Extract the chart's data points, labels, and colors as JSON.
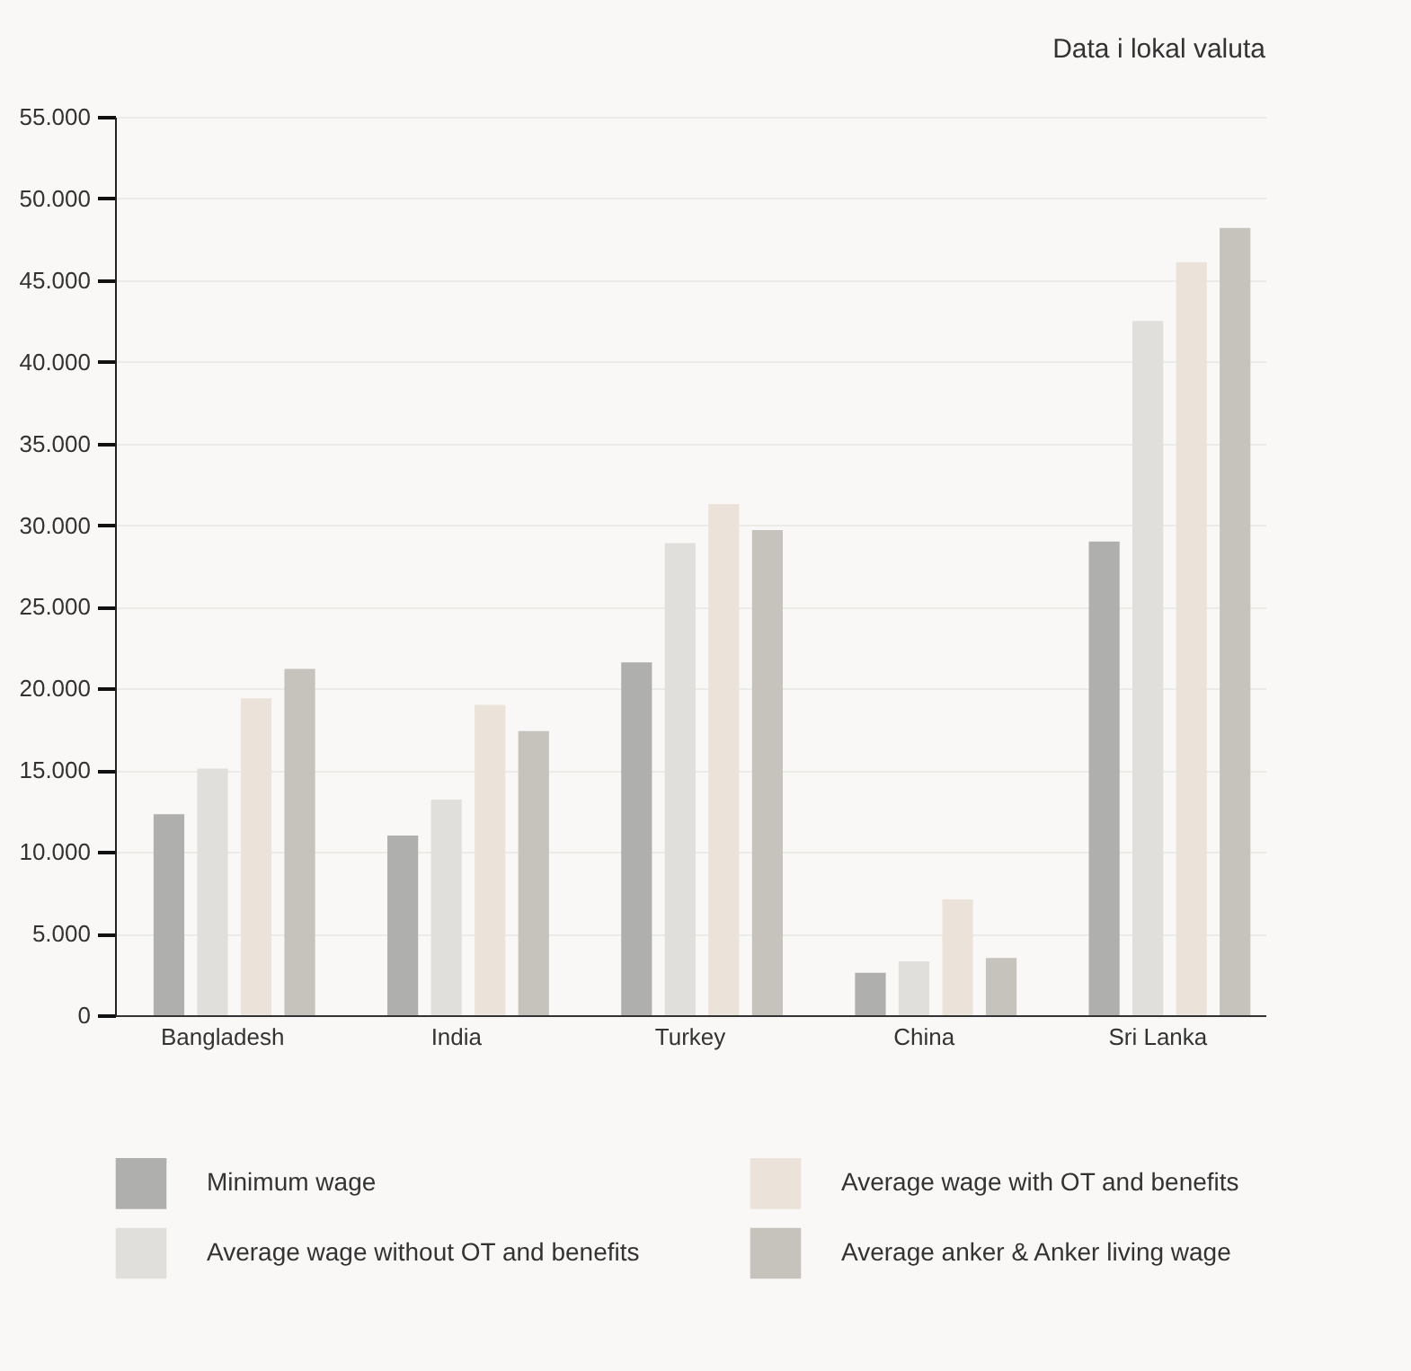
{
  "chart_data": {
    "type": "bar",
    "title": "Data i lokal valuta",
    "categories": [
      "Bangladesh",
      "India",
      "Turkey",
      "China",
      "Sri Lanka"
    ],
    "series": [
      {
        "name": "Minimum wage",
        "color": "#afafad",
        "values": [
          12300,
          11000,
          21600,
          2600,
          29000
        ]
      },
      {
        "name": "Average wage without OT and benefits",
        "color": "#e0dfdc",
        "values": [
          15100,
          13200,
          28900,
          3300,
          42500
        ]
      },
      {
        "name": "Average wage with OT and benefits",
        "color": "#ebe3da",
        "values": [
          19400,
          19000,
          31300,
          7100,
          46100
        ]
      },
      {
        "name": "Average anker & Anker living wage",
        "color": "#c6c3bd",
        "values": [
          21200,
          17400,
          29700,
          3500,
          48200
        ]
      }
    ],
    "ylim": [
      0,
      55000
    ],
    "yticks": [
      0,
      {
        "value": 5000,
        "label": "5.000"
      },
      {
        "value": 10000,
        "label": "10.000"
      },
      {
        "value": 15000,
        "label": "15.000"
      },
      {
        "value": 20000,
        "label": "20.000"
      },
      {
        "value": 25000,
        "label": "25.000"
      },
      {
        "value": 30000,
        "label": "30.000"
      },
      {
        "value": 35000,
        "label": "35.000"
      },
      {
        "value": 40000,
        "label": "40.000"
      },
      {
        "value": 45000,
        "label": "45.000"
      },
      {
        "value": 50000,
        "label": "50.000"
      },
      {
        "value": 55000,
        "label": "55.000"
      }
    ],
    "grid": "y",
    "legend": "bottom"
  }
}
